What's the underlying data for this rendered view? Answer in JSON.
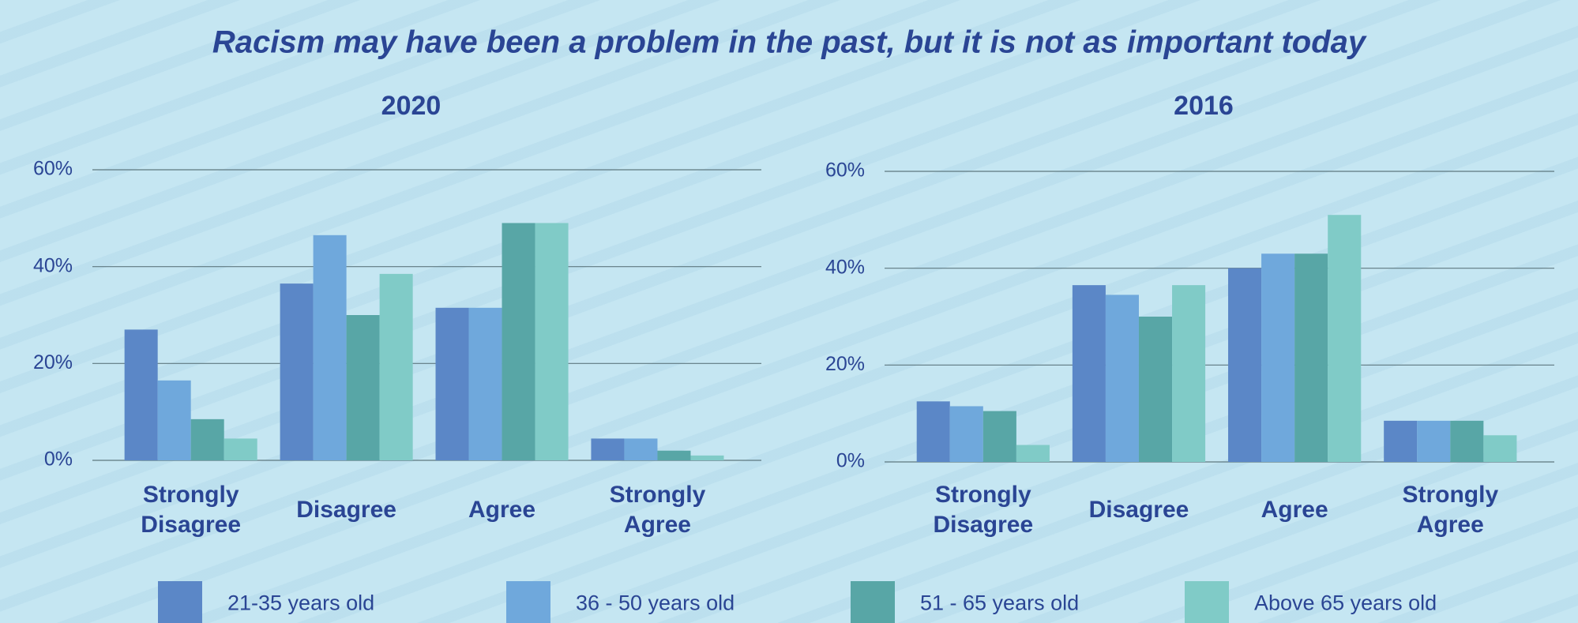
{
  "title": "Racism may have been a problem in the past, but it is not as important today",
  "chart_data": [
    {
      "type": "bar",
      "title": "2020",
      "categories": [
        "Strongly Disagree",
        "Disagree",
        "Agree",
        "Strongly Agree"
      ],
      "series": [
        {
          "name": "21-35 years old",
          "color": "#5b87c7",
          "values": [
            27,
            36.5,
            31.5,
            4.5
          ]
        },
        {
          "name": "36 - 50 years old",
          "color": "#6fa8dc",
          "values": [
            16.5,
            46.5,
            31.5,
            4.5
          ]
        },
        {
          "name": "51 - 65 years old",
          "color": "#58a6a6",
          "values": [
            8.5,
            30,
            49,
            2
          ]
        },
        {
          "name": "Above 65 years old",
          "color": "#80cbc7",
          "values": [
            4.5,
            38.5,
            49,
            1
          ]
        }
      ],
      "ylim": [
        0,
        60
      ],
      "yticks": [
        {
          "value": 0,
          "label": "0%"
        },
        {
          "value": 20,
          "label": "20%"
        },
        {
          "value": 40,
          "label": "40%"
        },
        {
          "value": 60,
          "label": "60%"
        }
      ],
      "grid": true
    },
    {
      "type": "bar",
      "title": "2016",
      "categories": [
        "Strongly Disagree",
        "Disagree",
        "Agree",
        "Strongly Agree"
      ],
      "series": [
        {
          "values": [
            12.5,
            36.5,
            40,
            8.5
          ]
        },
        {
          "values": [
            11.5,
            34.5,
            43,
            8.5
          ]
        },
        {
          "values": [
            10.5,
            30,
            43,
            8.5
          ]
        },
        {
          "values": [
            3.5,
            36.5,
            51,
            5.5
          ]
        }
      ],
      "ylim": [
        0,
        60
      ],
      "yticks": [
        {
          "value": 0,
          "label": "0%"
        },
        {
          "value": 20,
          "label": "20%"
        },
        {
          "value": 40,
          "label": "40%"
        },
        {
          "value": 60,
          "label": "60%"
        }
      ],
      "grid": true
    }
  ]
}
